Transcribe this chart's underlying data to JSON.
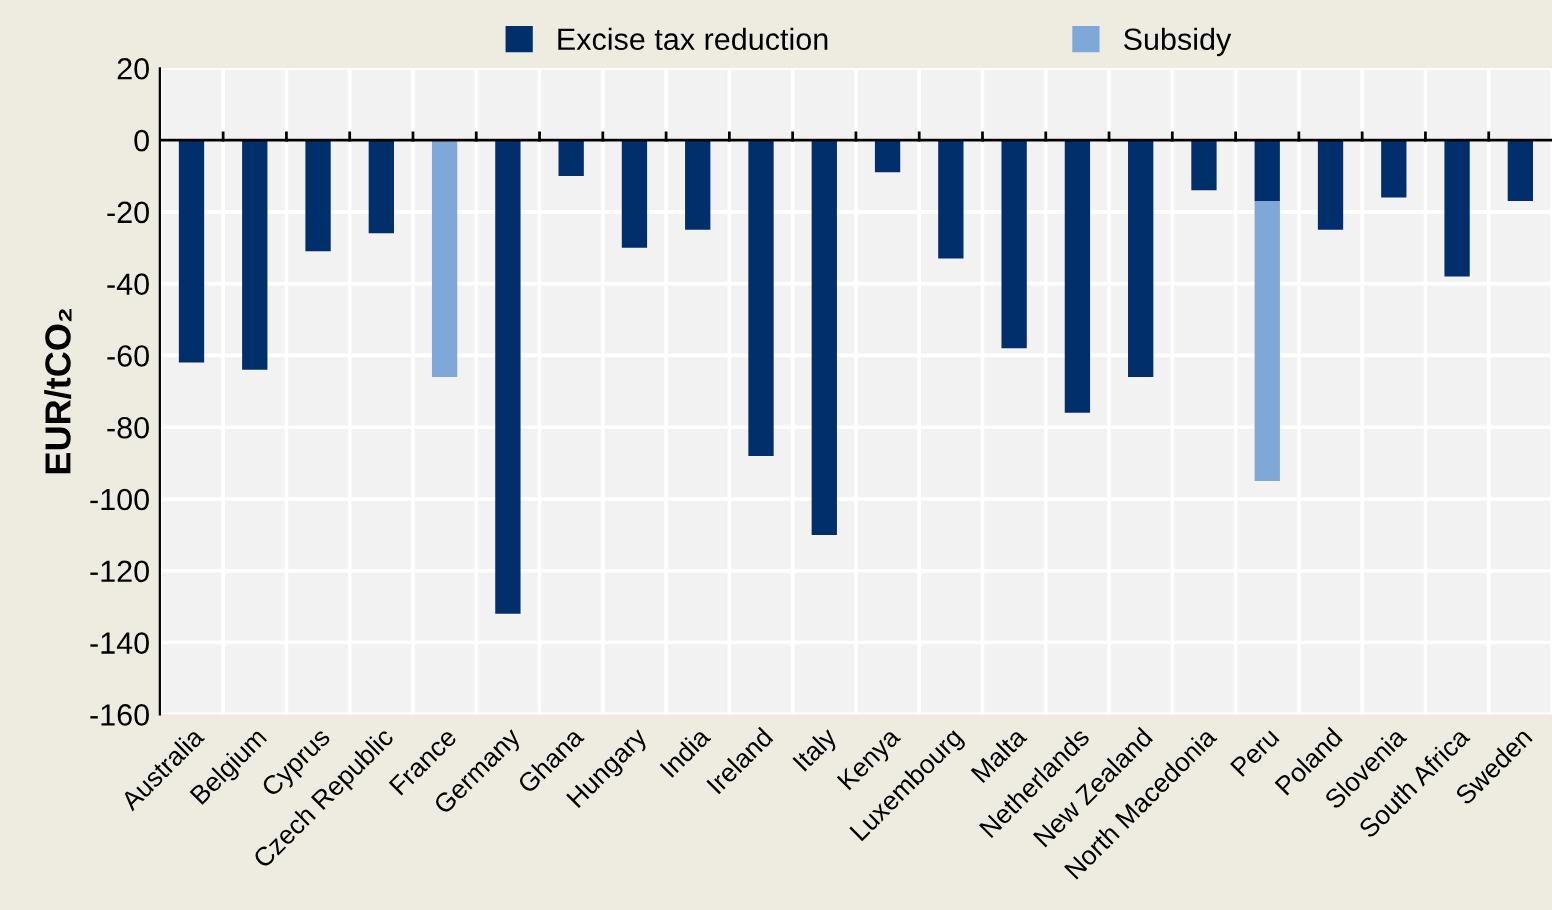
{
  "chart_data": {
    "type": "bar",
    "stacked": true,
    "ylabel": "EUR/tCO₂",
    "categories": [
      "Australia",
      "Belgium",
      "Cyprus",
      "Czech Republic",
      "France",
      "Germany",
      "Ghana",
      "Hungary",
      "India",
      "Ireland",
      "Italy",
      "Kenya",
      "Luxembourg",
      "Malta",
      "Netherlands",
      "New Zealand",
      "North Macedonia",
      "Peru",
      "Poland",
      "Slovenia",
      "South Africa",
      "Sweden"
    ],
    "series": [
      {
        "name": "Excise tax reduction",
        "color": "#002f6c",
        "values": [
          -62,
          -64,
          -31,
          -26,
          null,
          -132,
          -10,
          -30,
          -25,
          -88,
          -110,
          -9,
          -33,
          -58,
          -76,
          -66,
          -14,
          -17,
          -25,
          -16,
          -38,
          -17
        ]
      },
      {
        "name": "Subsidy",
        "color": "#7fa8d9",
        "values": [
          null,
          null,
          null,
          null,
          -66,
          null,
          null,
          null,
          null,
          null,
          null,
          null,
          null,
          null,
          null,
          null,
          null,
          -78,
          null,
          null,
          null,
          null
        ]
      }
    ],
    "ylim": [
      -160,
      20
    ],
    "yticks": [
      -160,
      -140,
      -120,
      -100,
      -80,
      -60,
      -40,
      -20,
      0,
      20
    ],
    "grid": true,
    "legend": "top"
  }
}
